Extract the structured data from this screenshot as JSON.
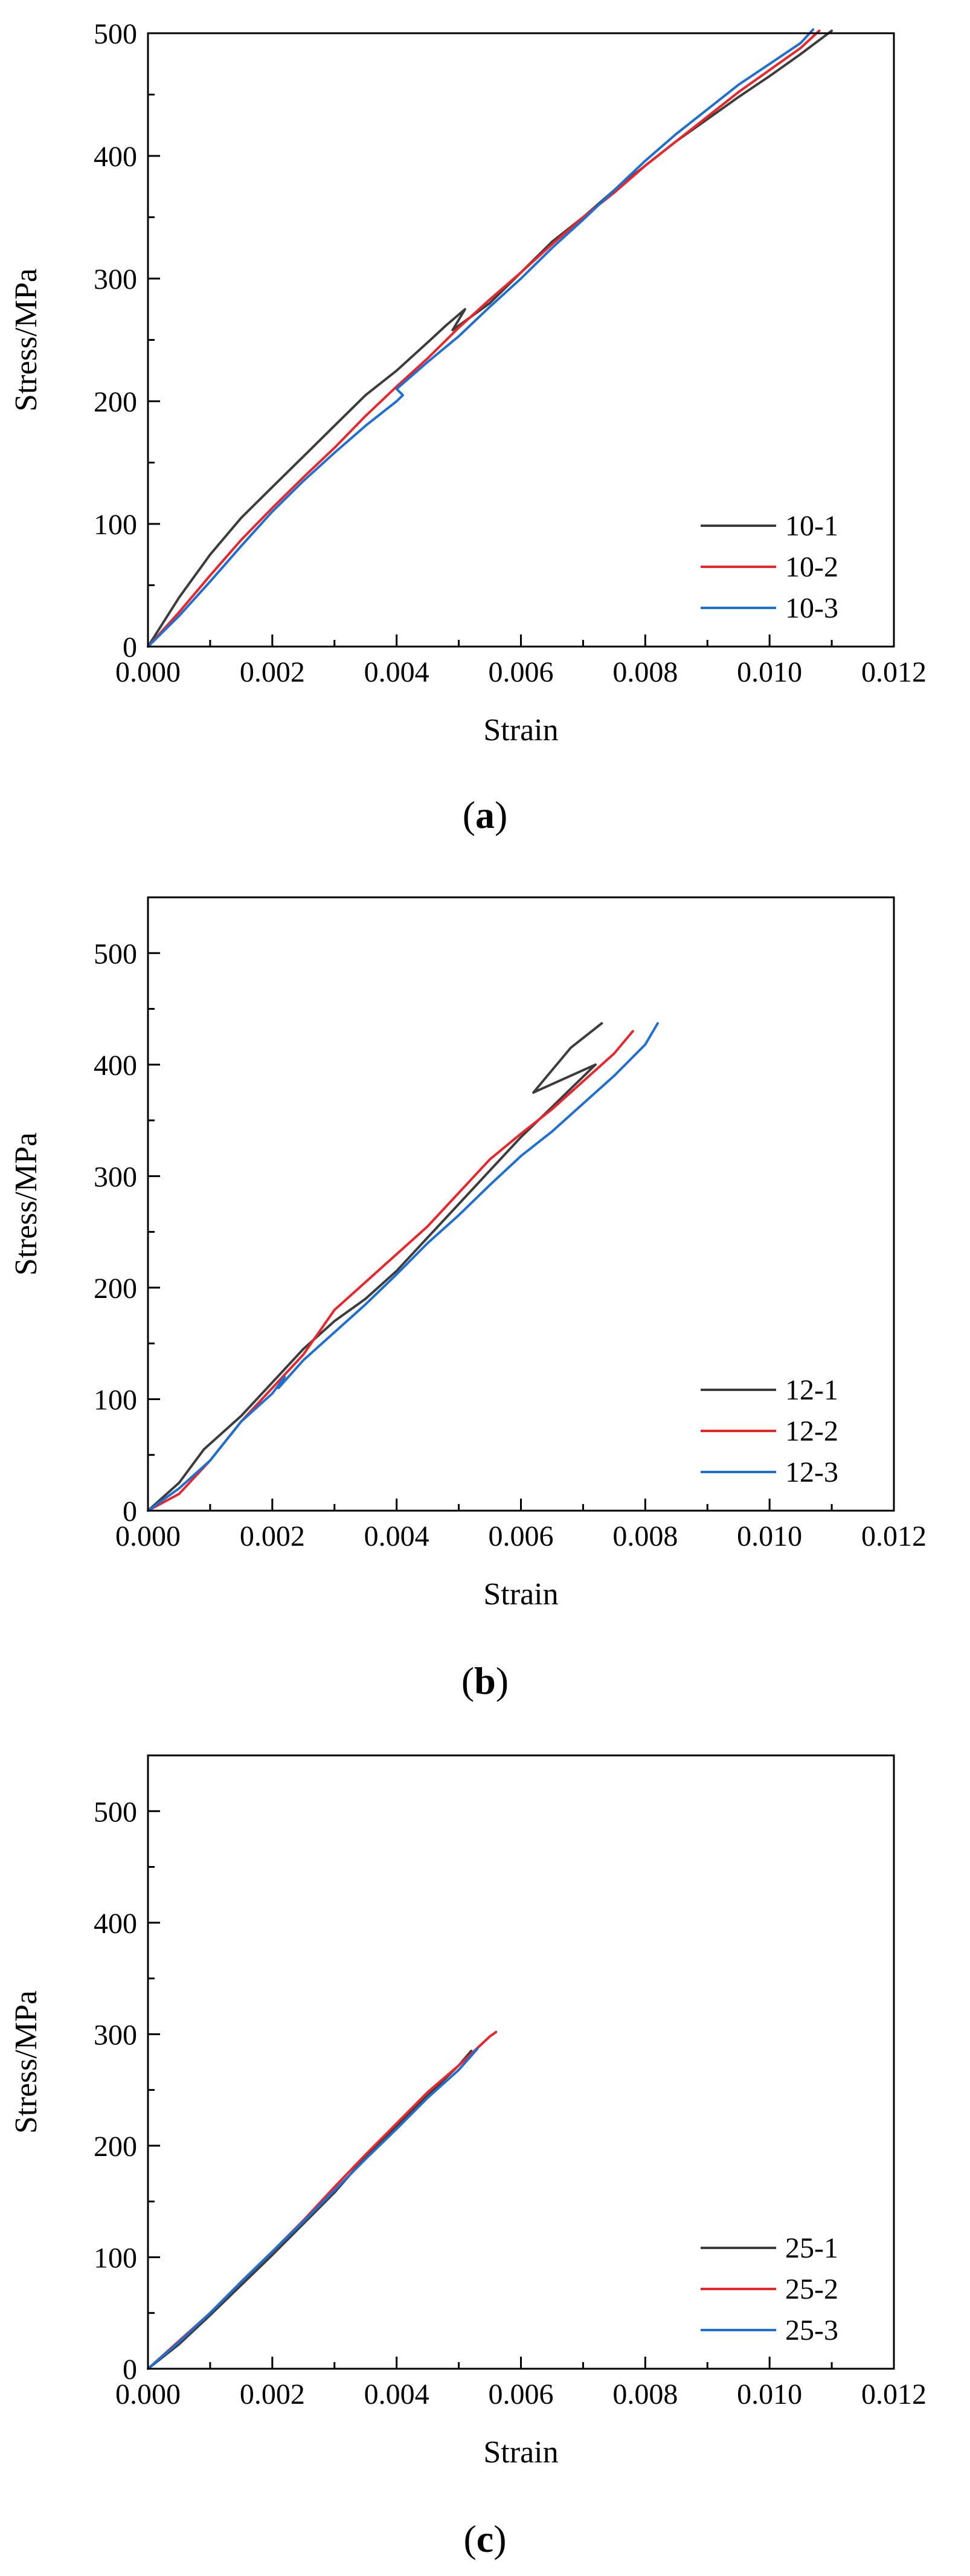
{
  "chart_data": [
    {
      "type": "line",
      "title": "",
      "xlabel": "Strain",
      "ylabel": "Stress/MPa",
      "xlim": [
        0,
        0.012
      ],
      "ylim": [
        0,
        500
      ],
      "xticks": [
        "0.000",
        "0.002",
        "0.004",
        "0.006",
        "0.008",
        "0.010",
        "0.012"
      ],
      "yticks": [
        "0",
        "100",
        "200",
        "300",
        "400",
        "500"
      ],
      "legend_position": "bottom-right",
      "caption": {
        "open": "(",
        "letter": "a",
        "close": ")"
      },
      "series": [
        {
          "name": "10-1",
          "color": "#3c3c3c",
          "x": [
            0,
            0.0005,
            0.001,
            0.0015,
            0.002,
            0.0025,
            0.003,
            0.0035,
            0.004,
            0.0045,
            0.0048,
            0.0051,
            0.0049,
            0.0055,
            0.006,
            0.0065,
            0.007,
            0.0075,
            0.008,
            0.0085,
            0.009,
            0.0095,
            0.01,
            0.0105,
            0.011
          ],
          "y": [
            0,
            40,
            75,
            105,
            130,
            155,
            180,
            205,
            225,
            248,
            262,
            275,
            258,
            280,
            305,
            330,
            350,
            372,
            392,
            412,
            430,
            448,
            465,
            483,
            502
          ]
        },
        {
          "name": "10-2",
          "color": "#e8262b",
          "x": [
            0,
            0.0005,
            0.001,
            0.0015,
            0.002,
            0.0025,
            0.003,
            0.0035,
            0.004,
            0.0045,
            0.005,
            0.0055,
            0.006,
            0.0065,
            0.007,
            0.0075,
            0.008,
            0.0085,
            0.009,
            0.0095,
            0.01,
            0.0105,
            0.0108
          ],
          "y": [
            0,
            28,
            58,
            87,
            113,
            138,
            162,
            188,
            212,
            235,
            260,
            283,
            305,
            328,
            350,
            370,
            392,
            412,
            432,
            452,
            470,
            488,
            502
          ]
        },
        {
          "name": "10-3",
          "color": "#1f6fd1",
          "x": [
            0,
            0.0005,
            0.001,
            0.0015,
            0.002,
            0.0025,
            0.003,
            0.0035,
            0.004,
            0.0041,
            0.004,
            0.0045,
            0.005,
            0.0055,
            0.006,
            0.0065,
            0.007,
            0.0075,
            0.008,
            0.0085,
            0.009,
            0.0095,
            0.01,
            0.0105,
            0.0107
          ],
          "y": [
            0,
            25,
            53,
            82,
            110,
            135,
            158,
            180,
            200,
            205,
            210,
            232,
            253,
            277,
            300,
            325,
            348,
            372,
            396,
            418,
            438,
            458,
            475,
            492,
            503
          ]
        }
      ]
    },
    {
      "type": "line",
      "title": "",
      "xlabel": "Strain",
      "ylabel": "Stress/MPa",
      "xlim": [
        0,
        0.012
      ],
      "ylim": [
        0,
        550
      ],
      "xticks": [
        "0.000",
        "0.002",
        "0.004",
        "0.006",
        "0.008",
        "0.010",
        "0.012"
      ],
      "yticks": [
        "0",
        "100",
        "200",
        "300",
        "400",
        "500"
      ],
      "legend_position": "bottom-right",
      "caption": {
        "open": "(",
        "letter": "b",
        "close": ")"
      },
      "series": [
        {
          "name": "12-1",
          "color": "#3c3c3c",
          "x": [
            0,
            0.0005,
            0.0009,
            0.0015,
            0.002,
            0.0025,
            0.003,
            0.0035,
            0.004,
            0.0045,
            0.005,
            0.0055,
            0.006,
            0.0065,
            0.0072,
            0.0062,
            0.0065,
            0.0068,
            0.0073
          ],
          "y": [
            0,
            25,
            55,
            85,
            115,
            145,
            170,
            190,
            215,
            245,
            275,
            305,
            335,
            362,
            400,
            375,
            395,
            415,
            437
          ]
        },
        {
          "name": "12-2",
          "color": "#e8262b",
          "x": [
            0,
            0.0005,
            0.001,
            0.0015,
            0.002,
            0.0025,
            0.003,
            0.0035,
            0.004,
            0.0045,
            0.005,
            0.0055,
            0.006,
            0.0065,
            0.007,
            0.0075,
            0.0078
          ],
          "y": [
            0,
            15,
            45,
            80,
            110,
            140,
            180,
            205,
            230,
            255,
            285,
            315,
            338,
            360,
            385,
            410,
            430
          ]
        },
        {
          "name": "12-3",
          "color": "#1f6fd1",
          "x": [
            0,
            0.0005,
            0.001,
            0.0015,
            0.002,
            0.0022,
            0.0021,
            0.0025,
            0.003,
            0.0035,
            0.004,
            0.0045,
            0.005,
            0.0055,
            0.006,
            0.0065,
            0.007,
            0.0075,
            0.008,
            0.0082
          ],
          "y": [
            0,
            20,
            45,
            80,
            105,
            120,
            110,
            135,
            160,
            185,
            212,
            240,
            265,
            292,
            318,
            340,
            365,
            390,
            418,
            437
          ]
        }
      ]
    },
    {
      "type": "line",
      "title": "",
      "xlabel": "Strain",
      "ylabel": "Stress/MPa",
      "xlim": [
        0,
        0.012
      ],
      "ylim": [
        0,
        550
      ],
      "xticks": [
        "0.000",
        "0.002",
        "0.004",
        "0.006",
        "0.008",
        "0.010",
        "0.012"
      ],
      "yticks": [
        "0",
        "100",
        "200",
        "300",
        "400",
        "500"
      ],
      "legend_position": "bottom-right",
      "caption": {
        "open": "(",
        "letter": "c",
        "close": ")"
      },
      "series": [
        {
          "name": "25-1",
          "color": "#3c3c3c",
          "x": [
            0,
            0.0005,
            0.001,
            0.0015,
            0.002,
            0.0025,
            0.003,
            0.0035,
            0.004,
            0.0045,
            0.005,
            0.0052
          ],
          "y": [
            0,
            22,
            48,
            75,
            102,
            130,
            158,
            190,
            218,
            245,
            272,
            285
          ]
        },
        {
          "name": "25-2",
          "color": "#e8262b",
          "x": [
            0,
            0.0005,
            0.001,
            0.0015,
            0.002,
            0.0025,
            0.003,
            0.0035,
            0.004,
            0.0045,
            0.005,
            0.0055,
            0.0056
          ],
          "y": [
            0,
            25,
            50,
            78,
            105,
            133,
            163,
            192,
            220,
            248,
            272,
            298,
            302
          ]
        },
        {
          "name": "25-3",
          "color": "#1f6fd1",
          "x": [
            0,
            0.0005,
            0.001,
            0.0015,
            0.002,
            0.0025,
            0.003,
            0.0035,
            0.004,
            0.0045,
            0.005,
            0.0053
          ],
          "y": [
            0,
            24,
            50,
            78,
            105,
            132,
            160,
            188,
            215,
            243,
            268,
            287
          ]
        }
      ]
    }
  ]
}
